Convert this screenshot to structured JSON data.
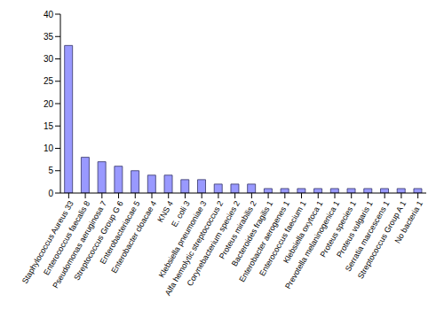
{
  "chart_data": {
    "type": "bar",
    "categories": [
      "Staphylococcus Aureus 33",
      "Enterococcus faecalis  8",
      "Pseudomonas aeruginosa 7",
      "Streptococcus Group G  6",
      "Enterobacteriacae 5",
      "Enterobacter cloacae 4",
      "KNS 4",
      "E. coli 3",
      "Klebsiella pneumoniae 3",
      "Alfa hemolytic streptococcus 2",
      "Corynebacterium species 2",
      "Proteus mirabilis  2",
      "Bacteroides fragilis 1",
      "Enterobacter aerogenes 1",
      "Enterococcus faecium 1",
      "Klebsiella oxytoca  1",
      "Prevotella melaninogenica 1",
      "Proteus species 1",
      "Proteus vulgaris 1",
      "Serratia marcescens 1",
      "Streptococcus Group A 1",
      "No bacteria 1"
    ],
    "values": [
      33,
      8,
      7,
      6,
      5,
      4,
      4,
      3,
      3,
      2,
      2,
      2,
      1,
      1,
      1,
      1,
      1,
      1,
      1,
      1,
      1,
      1
    ],
    "color": "#9999ff",
    "ylim": [
      0,
      40
    ],
    "yticks": [
      0,
      5,
      10,
      15,
      20,
      25,
      30,
      35,
      40
    ],
    "grid": false
  }
}
